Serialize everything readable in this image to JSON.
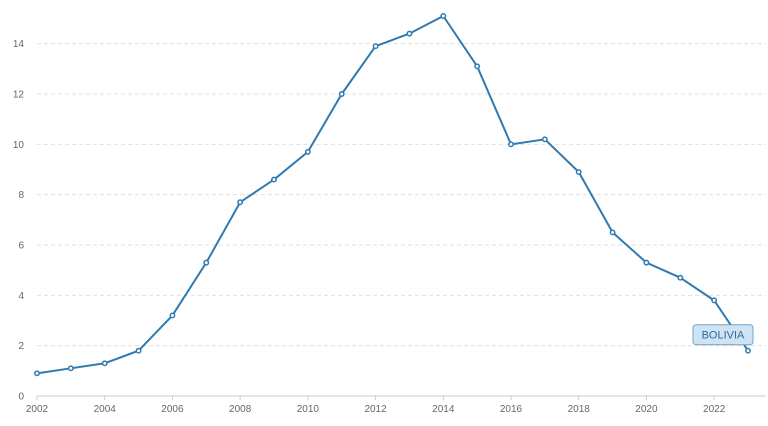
{
  "colors": {
    "series": "#2f7ab0",
    "grid": "#e0e0e0",
    "text": "#666666"
  },
  "chart_data": {
    "type": "line",
    "title": "",
    "xlabel": "",
    "ylabel": "",
    "xlim": [
      2002,
      2023
    ],
    "ylim": [
      0,
      15
    ],
    "x_ticks": [
      "2002",
      "2004",
      "2006",
      "2008",
      "2010",
      "2012",
      "2014",
      "2016",
      "2018",
      "2020",
      "2022"
    ],
    "y_ticks": [
      "0",
      "2",
      "4",
      "6",
      "8",
      "10",
      "12",
      "14"
    ],
    "grid": "horizontal dashed",
    "legend": "none",
    "series": [
      {
        "name": "BOLIVIA",
        "x": [
          2002,
          2003,
          2004,
          2005,
          2006,
          2007,
          2008,
          2009,
          2010,
          2011,
          2012,
          2013,
          2014,
          2015,
          2016,
          2017,
          2018,
          2019,
          2020,
          2021,
          2022,
          2023
        ],
        "y": [
          0.9,
          1.1,
          1.3,
          1.8,
          3.2,
          5.3,
          7.7,
          8.6,
          9.7,
          12.0,
          13.9,
          14.4,
          15.1,
          13.1,
          10.0,
          10.2,
          8.9,
          6.5,
          5.3,
          4.7,
          3.8,
          1.8
        ]
      }
    ]
  }
}
